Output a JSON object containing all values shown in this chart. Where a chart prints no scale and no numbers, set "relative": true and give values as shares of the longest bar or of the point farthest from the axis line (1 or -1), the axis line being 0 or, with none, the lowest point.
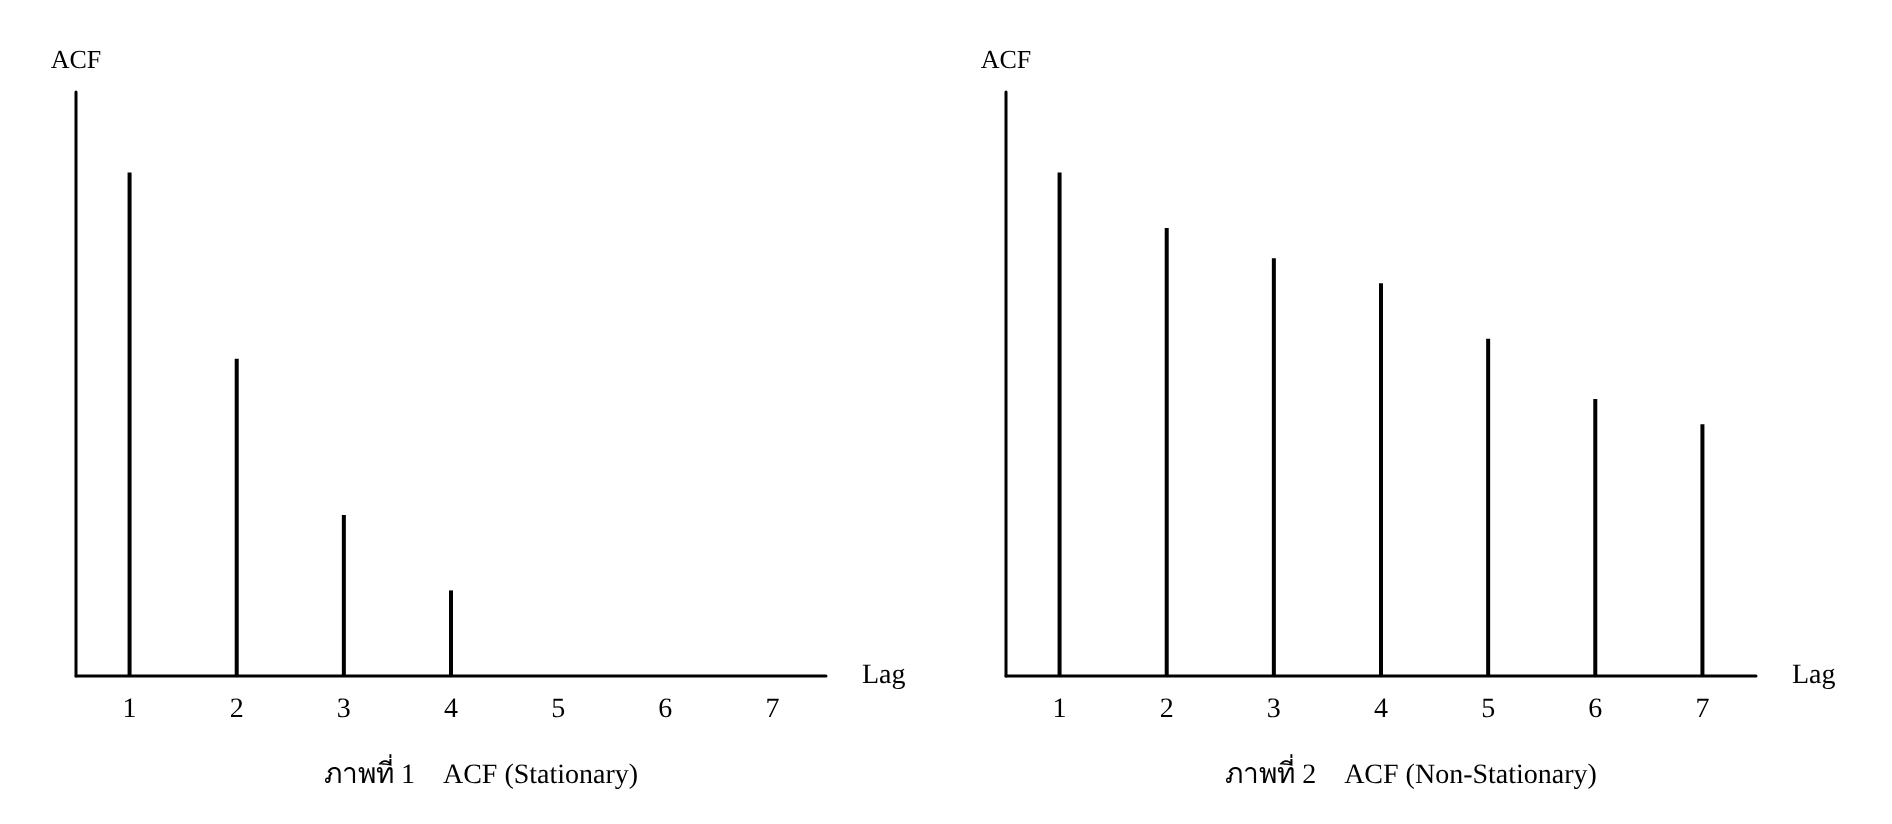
{
  "chart_data": [
    {
      "type": "bar",
      "title": "ภาพที่ 1    ACF (Stationary)",
      "xlabel": "Lag",
      "ylabel": "ACF",
      "relative": true,
      "categories": [
        "1",
        "2",
        "3",
        "4",
        "5",
        "6",
        "7"
      ],
      "series": [
        {
          "color": "#000000",
          "values": [
            1,
            0.63,
            0.32,
            0.17,
            null,
            null,
            null
          ]
        }
      ]
    },
    {
      "type": "bar",
      "title": "ภาพที่ 2    ACF (Non-Stationary)",
      "xlabel": "Lag",
      "ylabel": "ACF",
      "relative": true,
      "categories": [
        "1",
        "2",
        "3",
        "4",
        "5",
        "6",
        "7"
      ],
      "series": [
        {
          "color": "#000000",
          "values": [
            1,
            0.89,
            0.83,
            0.78,
            0.67,
            0.55,
            0.5
          ]
        }
      ]
    }
  ]
}
